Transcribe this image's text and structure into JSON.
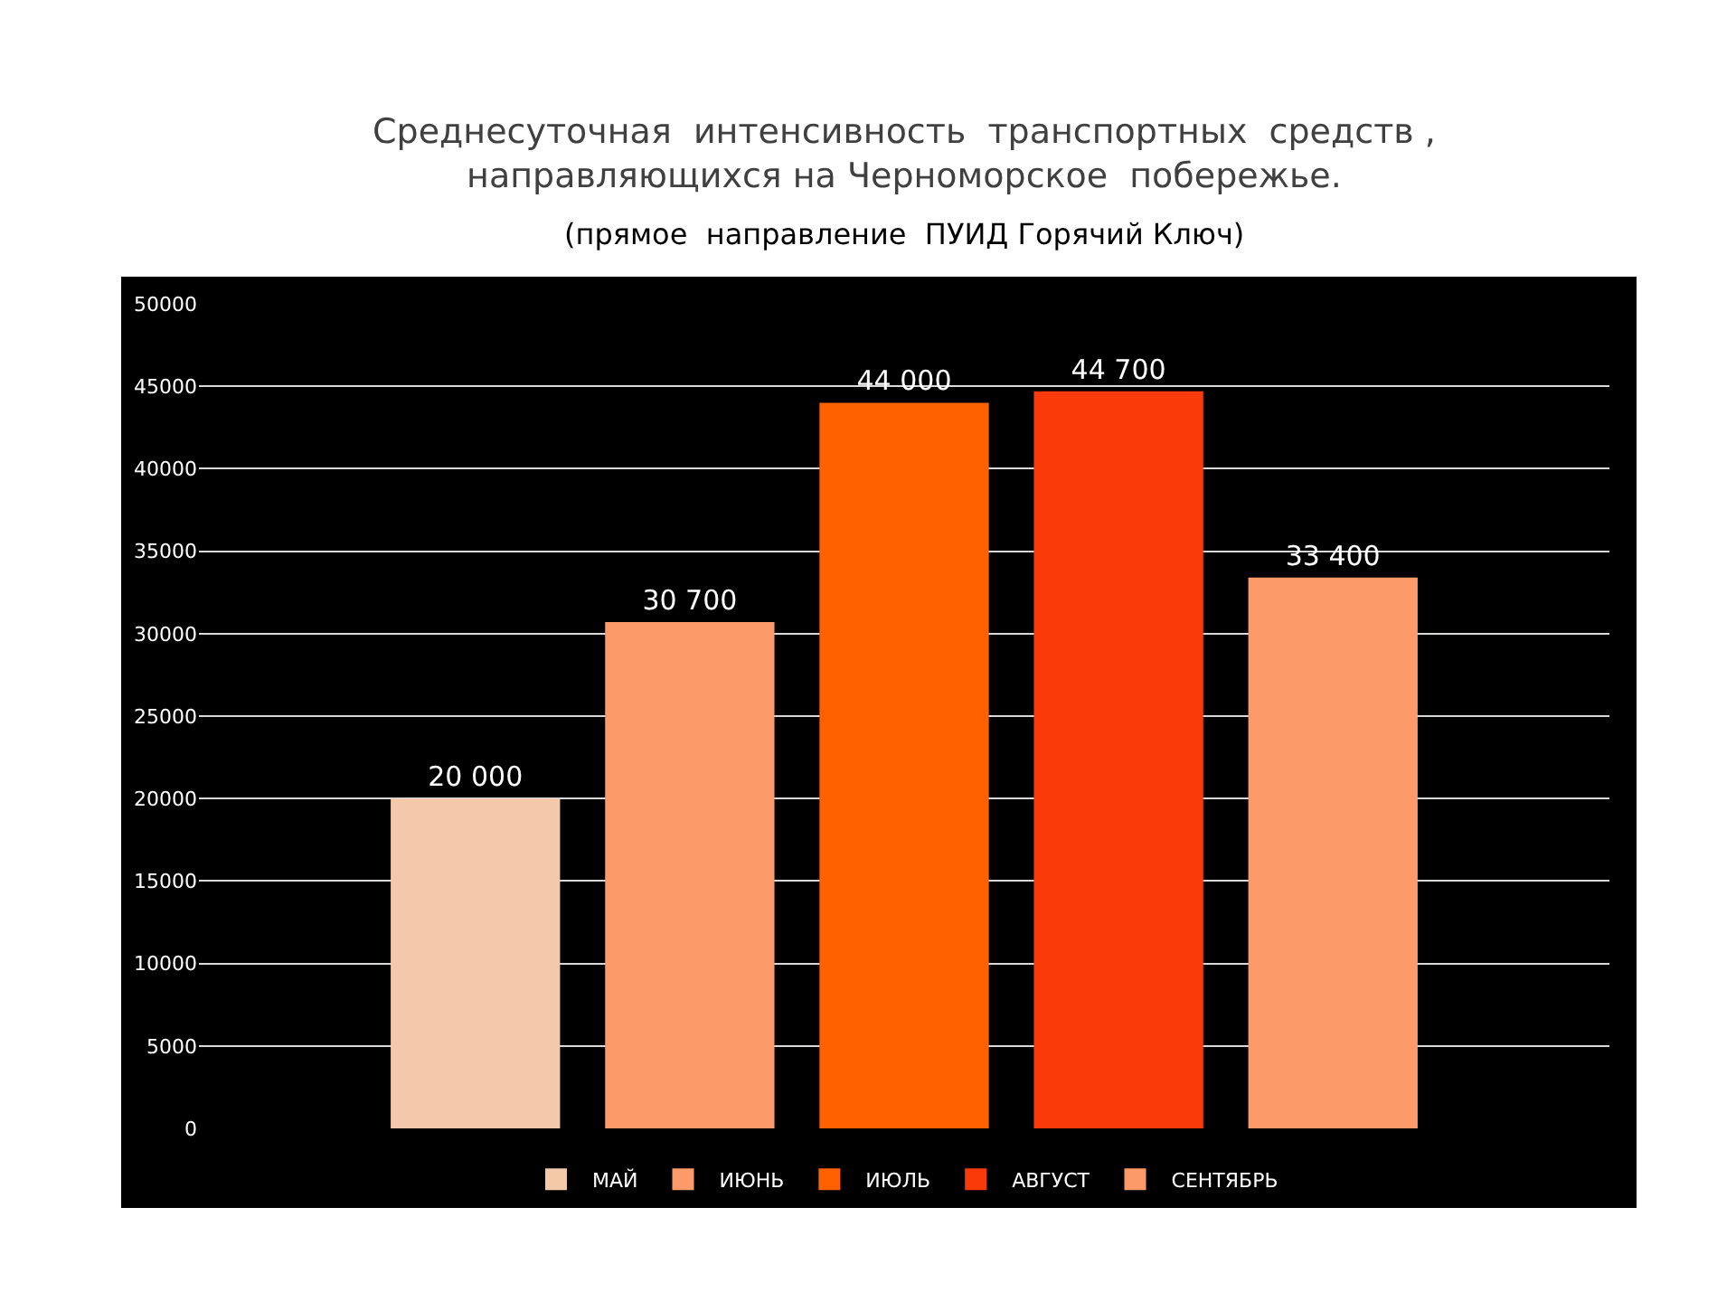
{
  "chart_data": {
    "type": "bar",
    "title": "Среднесуточная  интенсивность  транспортных  средств ,\nнаправляющихся на Черноморское  побережье.",
    "subtitle": "(прямое  направление  ПУИД Горячий Ключ)",
    "categories": [
      null
    ],
    "series": [
      {
        "name": "МАЙ",
        "color": "#f4c9aa",
        "values": [
          20000
        ],
        "value_labels": [
          "20 000"
        ]
      },
      {
        "name": "ИЮНЬ",
        "color": "#fc9a6a",
        "values": [
          30700
        ],
        "value_labels": [
          "30 700"
        ]
      },
      {
        "name": "ИЮЛЬ",
        "color": "#ff6000",
        "values": [
          44000
        ],
        "value_labels": [
          "44 000"
        ]
      },
      {
        "name": "АВГУСТ",
        "color": "#fb3a0a",
        "values": [
          44700
        ],
        "value_labels": [
          "44 700"
        ]
      },
      {
        "name": "СЕНТЯБРЬ",
        "color": "#fc9a6a",
        "values": [
          33400
        ],
        "value_labels": [
          "33 400"
        ]
      }
    ],
    "ylim": [
      0,
      50000
    ],
    "yticks": [
      0,
      5000,
      10000,
      15000,
      20000,
      25000,
      30000,
      35000,
      40000,
      45000,
      50000
    ],
    "grid": "y",
    "legend": "bottom",
    "tick_labels": "y"
  }
}
